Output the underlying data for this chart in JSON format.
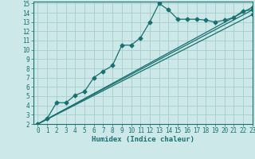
{
  "bg_color": "#cce8e8",
  "grid_color": "#aacccc",
  "line_color": "#1a7070",
  "xlabel": "Humidex (Indice chaleur)",
  "xlim": [
    -0.5,
    23
  ],
  "ylim": [
    2,
    15.2
  ],
  "xticks": [
    0,
    1,
    2,
    3,
    4,
    5,
    6,
    7,
    8,
    9,
    10,
    11,
    12,
    13,
    14,
    15,
    16,
    17,
    18,
    19,
    20,
    21,
    22,
    23
  ],
  "yticks": [
    2,
    3,
    4,
    5,
    6,
    7,
    8,
    9,
    10,
    11,
    12,
    13,
    14,
    15
  ],
  "line1_x": [
    0,
    1,
    2,
    3,
    4,
    5,
    6,
    7,
    8,
    9,
    10,
    11,
    12,
    13,
    14,
    15,
    16,
    17,
    18,
    19,
    20,
    21,
    22,
    23
  ],
  "line1_y": [
    2.0,
    2.6,
    4.3,
    4.3,
    5.1,
    5.5,
    7.0,
    7.7,
    8.3,
    10.5,
    10.5,
    11.3,
    13.0,
    15.0,
    14.3,
    13.3,
    13.3,
    13.3,
    13.2,
    13.0,
    13.2,
    13.5,
    14.2,
    14.3
  ],
  "line2_x": [
    0,
    23
  ],
  "line2_y": [
    2.0,
    14.6
  ],
  "line3_x": [
    0,
    23
  ],
  "line3_y": [
    2.0,
    14.3
  ],
  "line4_x": [
    0,
    23
  ],
  "line4_y": [
    2.0,
    13.8
  ],
  "tick_fontsize": 5.5,
  "label_fontsize": 6.5
}
